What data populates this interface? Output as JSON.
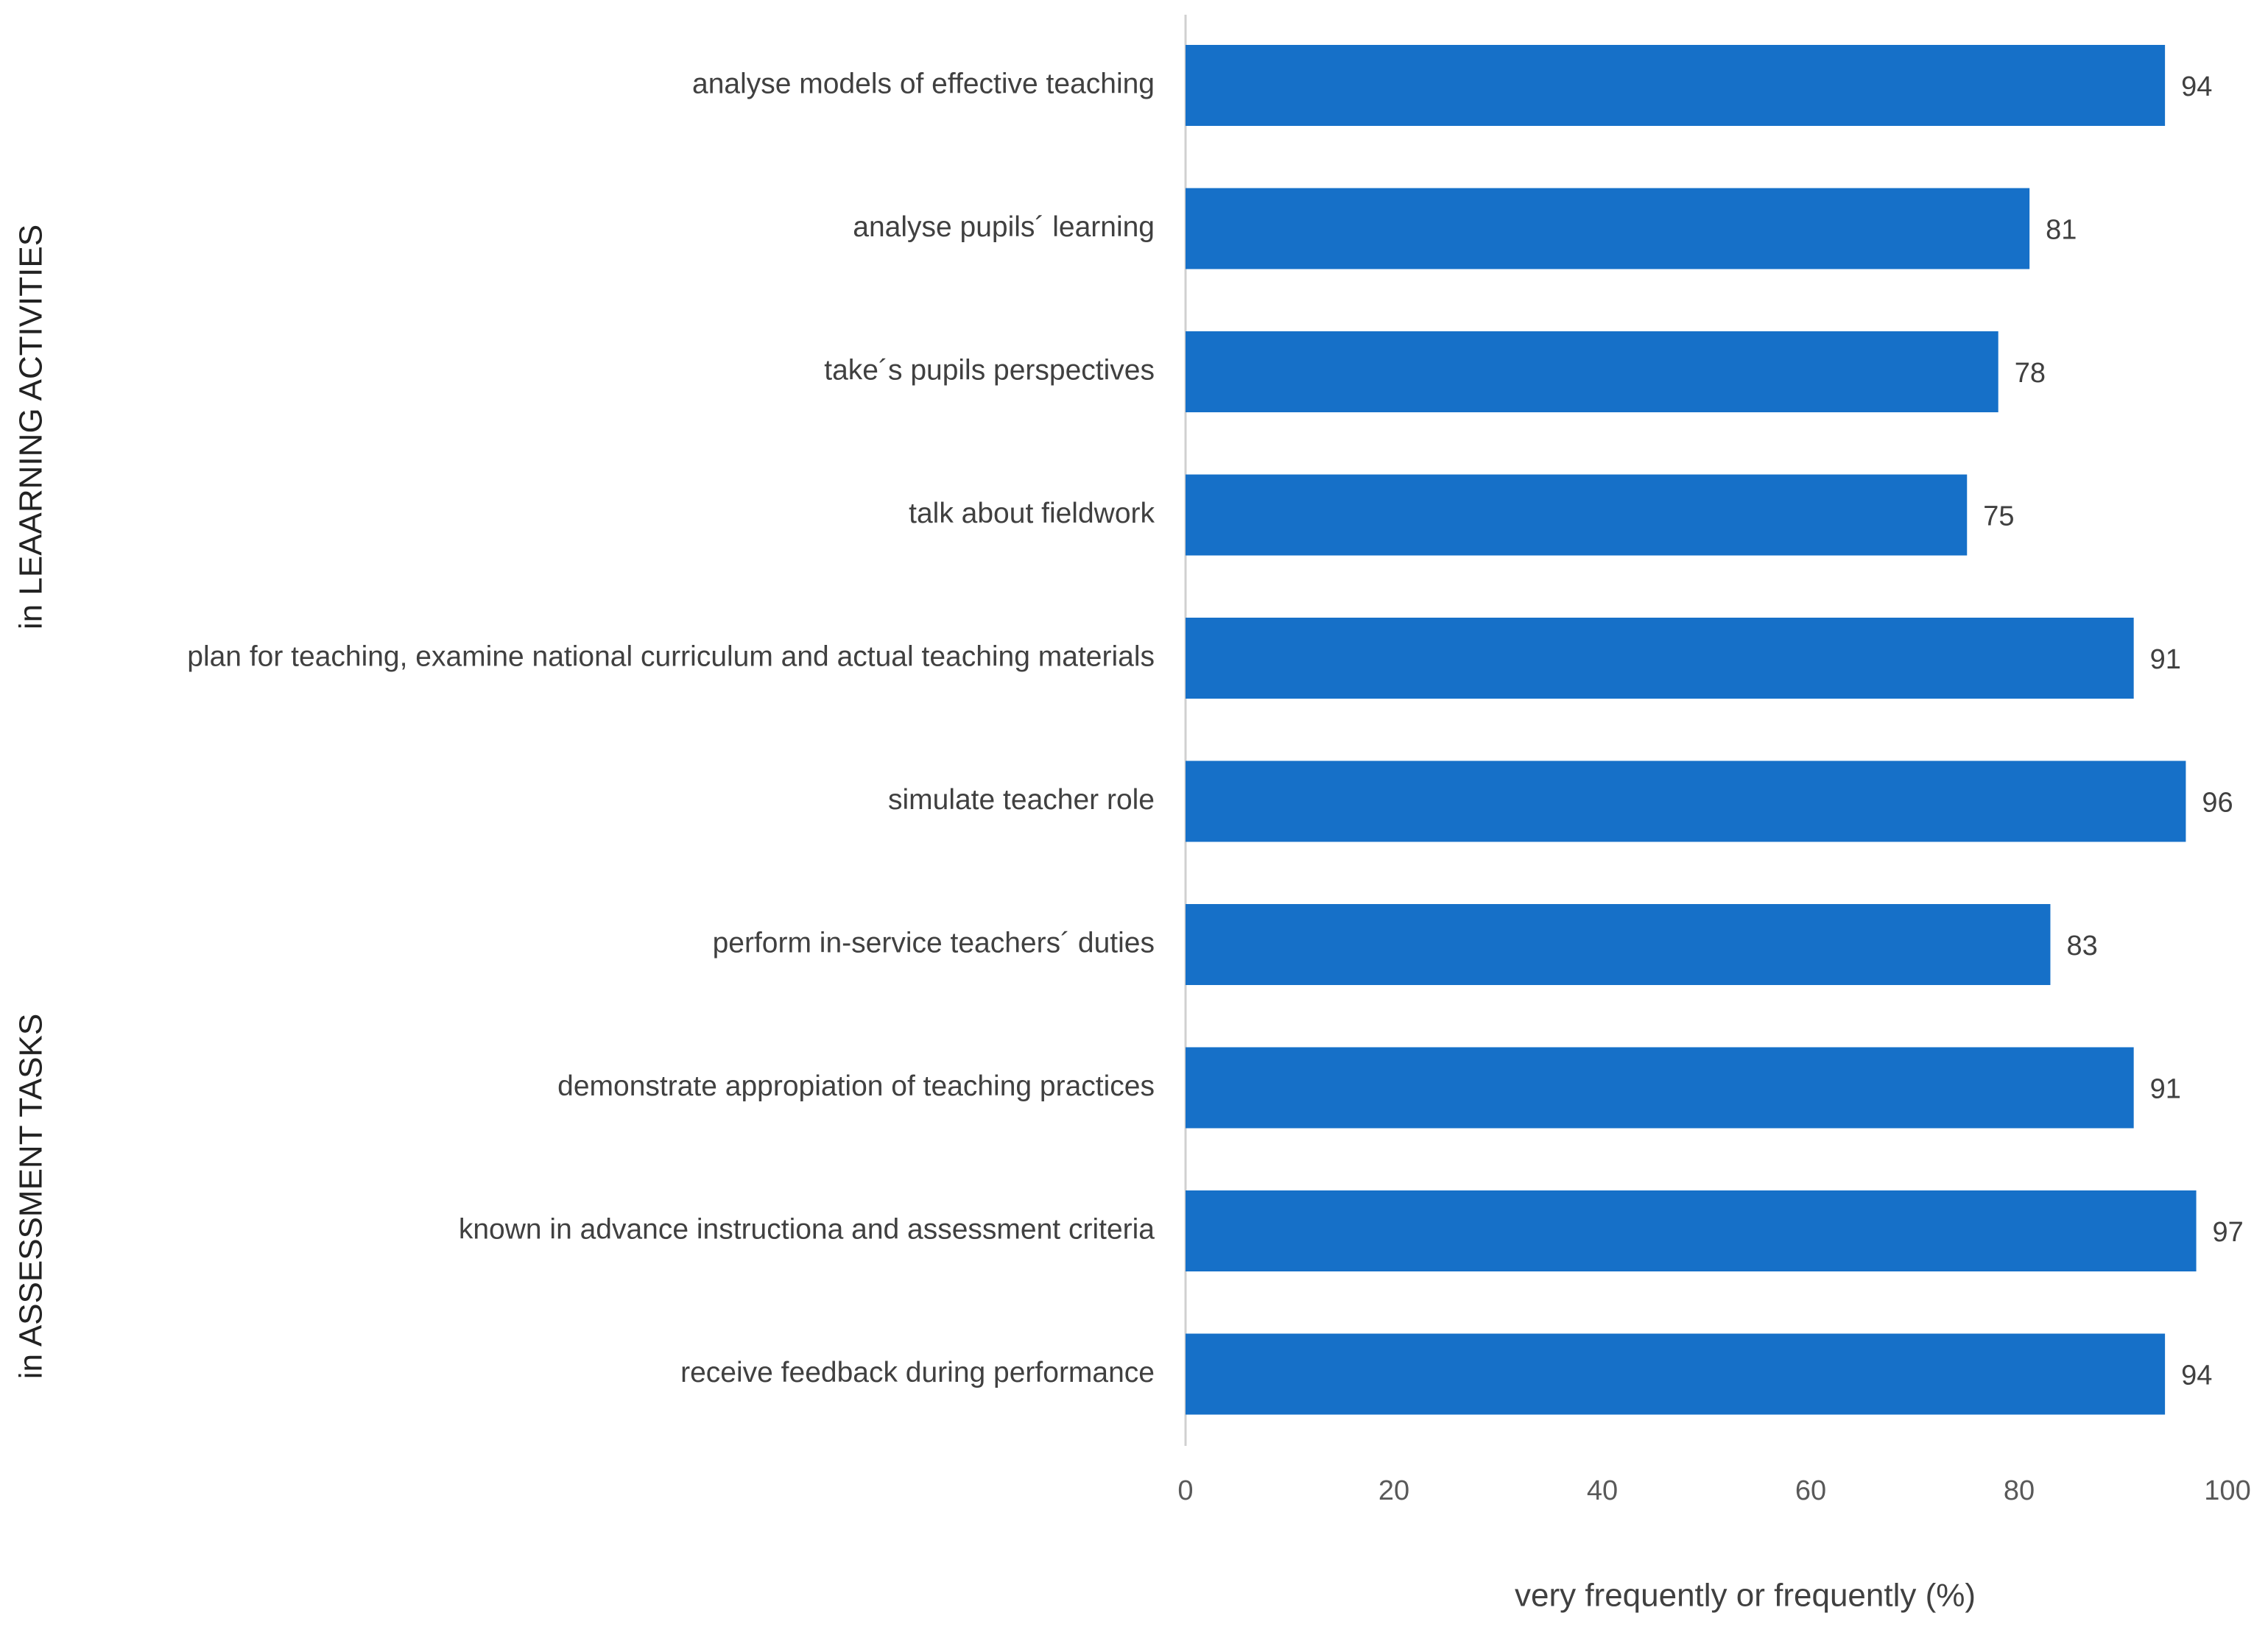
{
  "chart_data": {
    "type": "bar",
    "orientation": "horizontal",
    "categories": [
      "analyse models of effective teaching",
      "analyse pupils´ learning",
      "take´s pupils perspectives",
      "talk about fieldwork",
      "plan for teaching, examine national curriculum and actual teaching materials",
      "simulate teacher role",
      "perform in-service teachers´ duties",
      "demonstrate appropiation of teaching practices",
      "known in advance instructiona and assessment criteria",
      "receive feedback during performance"
    ],
    "values": [
      94,
      81,
      78,
      75,
      91,
      96,
      83,
      91,
      97,
      94
    ],
    "color": "#1670c8",
    "xlim": [
      0,
      100
    ],
    "xticks": [
      0,
      20,
      40,
      60,
      80,
      100
    ],
    "xlabel": "very frequently or frequently (%)",
    "group_labels": [
      "in LEAARNING ACTIVITIES",
      "in ASSESSMENT TASKS"
    ],
    "grid": false
  }
}
